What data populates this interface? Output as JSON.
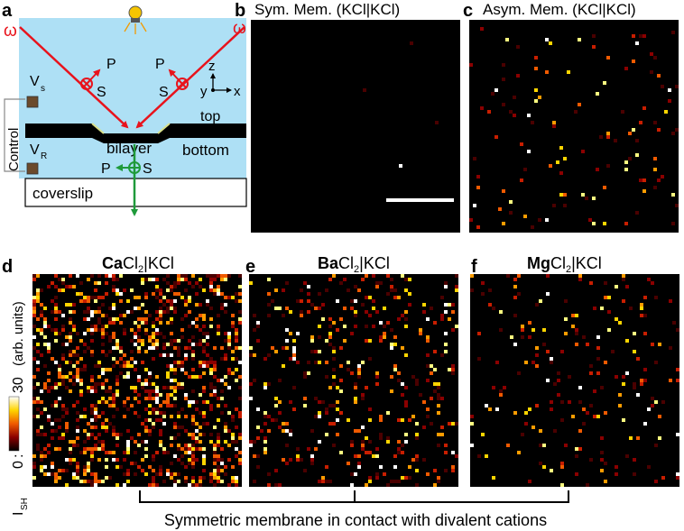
{
  "panels": {
    "a": {
      "letter": "a",
      "omega_left": "ω",
      "omega_right": "ω",
      "p_left": "P",
      "s_left": "S",
      "p_right": "P",
      "s_right": "S",
      "axis_z": "z",
      "axis_y": "y",
      "axis_x": "x",
      "v_s": "V",
      "v_s_sub": "s",
      "v_r": "V",
      "v_r_sub": "R",
      "control": "Control",
      "top": "top",
      "bilayer": "bilayer",
      "bottom": "bottom",
      "p_bottom": "P",
      "s_bottom": "S",
      "coverslip": "coverslip",
      "colors": {
        "medium": "#aee0f5",
        "beam": "#e8131c",
        "beam_out": "#1f9a3a",
        "electrode": "#6b4a2b"
      }
    },
    "b": {
      "letter": "b",
      "title": "Sym. Mem. (KCl|KCl)",
      "seed": 3,
      "density": 0.0015
    },
    "c": {
      "letter": "c",
      "title": "Asym. Mem. (KCl|KCl)",
      "seed": 11,
      "density": 0.03
    },
    "d": {
      "letter": "d",
      "title_bold": "Ca",
      "title_rest": "Cl",
      "title_sub": "2",
      "title_tail": "|KCl",
      "seed": 21,
      "density": 0.32
    },
    "e": {
      "letter": "e",
      "title_bold": "Ba",
      "title_rest": "Cl",
      "title_sub": "2",
      "title_tail": "|KCl",
      "seed": 37,
      "density": 0.13
    },
    "f": {
      "letter": "f",
      "title_bold": "Mg",
      "title_rest": "Cl",
      "title_sub": "2",
      "title_tail": "|KCl",
      "seed": 53,
      "density": 0.06
    }
  },
  "colorbar": {
    "max_label": "30",
    "unit_label": "(arb. units)",
    "min_label": "0",
    "var_label": "I",
    "var_sub": "SH",
    "colon": ":"
  },
  "bracket_caption": "Symmetric membrane in contact with divalent cations",
  "colormap": [
    "#000000",
    "#4a0000",
    "#8b0000",
    "#c81e00",
    "#f05a00",
    "#ff9c00",
    "#ffd500",
    "#ffff80",
    "#ffffff"
  ]
}
